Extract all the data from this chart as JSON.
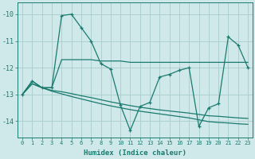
{
  "xlabel": "Humidex (Indice chaleur)",
  "background_color": "#cfe9eb",
  "grid_color": "#a8cccc",
  "line_color": "#1a7a6e",
  "xlim": [
    -0.5,
    23.5
  ],
  "ylim": [
    -14.6,
    -9.55
  ],
  "yticks": [
    -14,
    -13,
    -12,
    -11,
    -10
  ],
  "xticks": [
    0,
    1,
    2,
    3,
    4,
    5,
    6,
    7,
    8,
    9,
    10,
    11,
    12,
    13,
    14,
    15,
    16,
    17,
    18,
    19,
    20,
    21,
    22,
    23
  ],
  "s_main_x": [
    0,
    1,
    2,
    3,
    4,
    5,
    6,
    7,
    8,
    9,
    10,
    11,
    12,
    13,
    14,
    15,
    16,
    17,
    18,
    19,
    20,
    21,
    22,
    23
  ],
  "s_main_y": [
    -13.0,
    -12.5,
    -12.75,
    -12.75,
    -10.05,
    -10.0,
    -10.5,
    -11.0,
    -11.85,
    -12.05,
    -13.4,
    -14.35,
    -13.45,
    -13.3,
    -12.35,
    -12.25,
    -12.1,
    -12.0,
    -14.2,
    -13.5,
    -13.35,
    -10.85,
    -11.15,
    -12.0
  ],
  "s_flat_x": [
    0,
    1,
    2,
    3,
    4,
    5,
    6,
    7,
    8,
    9,
    10,
    11,
    12,
    13,
    14,
    15,
    16,
    17,
    18,
    19,
    20,
    21,
    22,
    23
  ],
  "s_flat_y": [
    -13.0,
    -12.5,
    -12.75,
    -12.75,
    -11.7,
    -11.7,
    -11.7,
    -11.7,
    -11.75,
    -11.75,
    -11.75,
    -11.8,
    -11.8,
    -11.8,
    -11.8,
    -11.8,
    -11.8,
    -11.8,
    -11.8,
    -11.8,
    -11.8,
    -11.8,
    -11.8,
    -11.8
  ],
  "s_reg1_x": [
    0,
    1,
    2,
    3,
    4,
    5,
    6,
    7,
    8,
    9,
    10,
    11,
    12,
    13,
    14,
    15,
    16,
    17,
    18,
    19,
    20,
    21,
    22,
    23
  ],
  "s_reg1_y": [
    -13.0,
    -12.6,
    -12.75,
    -12.85,
    -12.9,
    -12.97,
    -13.05,
    -13.12,
    -13.2,
    -13.28,
    -13.35,
    -13.42,
    -13.48,
    -13.53,
    -13.58,
    -13.62,
    -13.66,
    -13.7,
    -13.75,
    -13.8,
    -13.82,
    -13.85,
    -13.88,
    -13.9
  ],
  "s_reg2_x": [
    0,
    1,
    2,
    3,
    4,
    5,
    6,
    7,
    8,
    9,
    10,
    11,
    12,
    13,
    14,
    15,
    16,
    17,
    18,
    19,
    20,
    21,
    22,
    23
  ],
  "s_reg2_y": [
    -13.0,
    -12.6,
    -12.75,
    -12.88,
    -12.98,
    -13.08,
    -13.17,
    -13.26,
    -13.35,
    -13.43,
    -13.5,
    -13.57,
    -13.63,
    -13.68,
    -13.73,
    -13.78,
    -13.83,
    -13.88,
    -13.95,
    -14.02,
    -14.05,
    -14.07,
    -14.1,
    -14.12
  ]
}
